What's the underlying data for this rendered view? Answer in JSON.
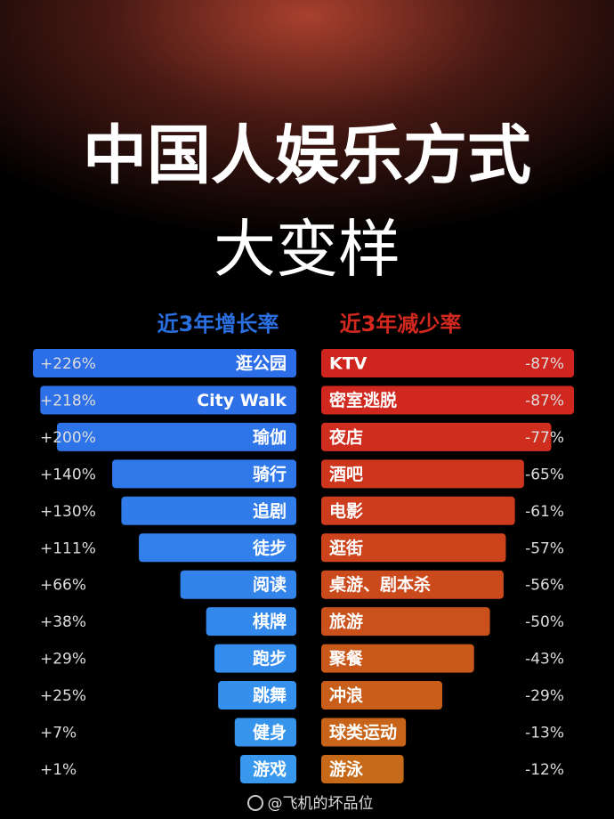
{
  "header": {
    "title": "中国人娱乐方式",
    "subtitle": "大变样"
  },
  "chart_data": [
    {
      "type": "bar",
      "title": "近3年增长率",
      "categories": [
        "逛公园",
        "City Walk",
        "瑜伽",
        "骑行",
        "追剧",
        "徒步",
        "阅读",
        "棋牌",
        "跑步",
        "跳舞",
        "健身",
        "游戏"
      ],
      "values": [
        226,
        218,
        200,
        140,
        130,
        111,
        66,
        38,
        29,
        25,
        7,
        1
      ],
      "value_labels": [
        "+226%",
        "+218%",
        "+200%",
        "+140%",
        "+130%",
        "+111%",
        "+66%",
        "+38%",
        "+29%",
        "+25%",
        "+7%",
        "+1%"
      ],
      "color": "#2f6fe6",
      "colors": [
        "#2c6ee8",
        "#2d70e8",
        "#2e74e9",
        "#2f78ea",
        "#307cea",
        "#3180eb",
        "#3284eb",
        "#3388ec",
        "#348cec",
        "#3590ed",
        "#3694ed",
        "#3798ee"
      ]
    },
    {
      "type": "bar",
      "title": "近3年减少率",
      "categories": [
        "KTV",
        "密室逃脱",
        "夜店",
        "酒吧",
        "电影",
        "逛街",
        "桌游、剧本杀",
        "旅游",
        "聚餐",
        "冲浪",
        "球类运动",
        "游泳"
      ],
      "values": [
        -87,
        -87,
        -77,
        -65,
        -61,
        -57,
        -56,
        -50,
        -43,
        -29,
        -13,
        -12
      ],
      "value_labels": [
        "-87%",
        "-87%",
        "-77%",
        "-65%",
        "-61%",
        "-57%",
        "-56%",
        "-50%",
        "-43%",
        "-29%",
        "-13%",
        "-12%"
      ],
      "color": "#d2281e",
      "colors": [
        "#d0241e",
        "#d0281e",
        "#cf2e1e",
        "#ce351d",
        "#cd3c1d",
        "#cc431c",
        "#cb4a1c",
        "#ca511b",
        "#c9581b",
        "#c85e1a",
        "#c7641a",
        "#c66a19"
      ]
    }
  ],
  "footer": {
    "credit": "@飞机的坏品位"
  }
}
